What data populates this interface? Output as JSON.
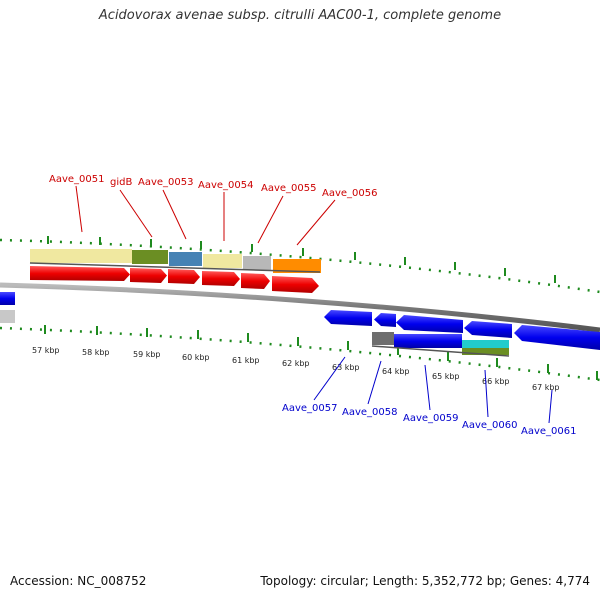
{
  "title": "Acidovorax avenae subsp. citrulli AAC00-1, complete genome",
  "footer": {
    "accession": "Accession: NC_008752",
    "summary": "Topology: circular; Length: 5,352,772 bp; Genes: 4,774"
  },
  "colors": {
    "forward_label": "#cc0000",
    "reverse_label": "#0000cc",
    "backbone": "#888888",
    "tick": "#1e8a1e"
  },
  "scale": {
    "labels": [
      "57 kbp",
      "58 kbp",
      "59 kbp",
      "60 kbp",
      "61 kbp",
      "62 kbp",
      "63 kbp",
      "64 kbp",
      "65 kbp",
      "66 kbp",
      "67 kbp"
    ]
  },
  "forward_genes": [
    {
      "label": "Aave_0051"
    },
    {
      "label": "gidB"
    },
    {
      "label": "Aave_0053"
    },
    {
      "label": "Aave_0054"
    },
    {
      "label": "Aave_0055"
    },
    {
      "label": "Aave_0056"
    }
  ],
  "reverse_genes": [
    {
      "label": "Aave_0057"
    },
    {
      "label": "Aave_0058"
    },
    {
      "label": "Aave_0059"
    },
    {
      "label": "Aave_0060"
    },
    {
      "label": "Aave_0061"
    }
  ]
}
